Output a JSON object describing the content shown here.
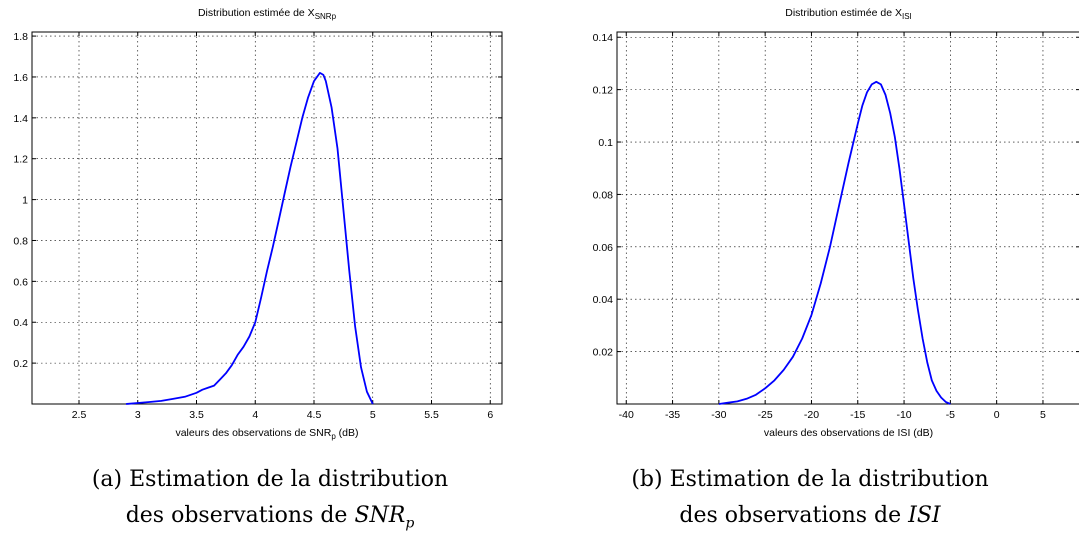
{
  "chart_data": [
    {
      "type": "line",
      "title": {
        "main": "Distribution estimée de X",
        "sub": "SNRp"
      },
      "xlabel": {
        "main": "valeurs des observations de SNR",
        "sub": "p",
        "suffix": " (dB)"
      },
      "ylabel": "",
      "xlim": [
        2.1,
        6.1
      ],
      "ylim": [
        0,
        1.82
      ],
      "xticks": [
        2.5,
        3,
        3.5,
        4,
        4.5,
        5,
        5.5,
        6
      ],
      "xtick_labels": [
        "2.5",
        "3",
        "3.5",
        "4",
        "4.5",
        "5",
        "5.5",
        "6"
      ],
      "yticks": [
        0.2,
        0.4,
        0.6,
        0.8,
        1,
        1.2,
        1.4,
        1.6,
        1.8
      ],
      "ytick_labels": [
        "0.2",
        "0.4",
        "0.6",
        "0.8",
        "1",
        "1.2",
        "1.4",
        "1.6",
        "1.8"
      ],
      "grid": true,
      "line_color": "#0000ff",
      "x": [
        2.9,
        3.0,
        3.1,
        3.2,
        3.3,
        3.4,
        3.5,
        3.55,
        3.6,
        3.65,
        3.7,
        3.75,
        3.8,
        3.85,
        3.9,
        3.95,
        4.0,
        4.05,
        4.1,
        4.15,
        4.2,
        4.25,
        4.3,
        4.35,
        4.4,
        4.45,
        4.5,
        4.55,
        4.58,
        4.6,
        4.65,
        4.7,
        4.75,
        4.8,
        4.85,
        4.9,
        4.95,
        5.0
      ],
      "y": [
        0.0,
        0.005,
        0.01,
        0.015,
        0.025,
        0.035,
        0.055,
        0.07,
        0.08,
        0.09,
        0.12,
        0.15,
        0.19,
        0.24,
        0.28,
        0.33,
        0.4,
        0.52,
        0.65,
        0.77,
        0.9,
        1.03,
        1.16,
        1.28,
        1.4,
        1.5,
        1.58,
        1.62,
        1.61,
        1.58,
        1.45,
        1.25,
        0.95,
        0.65,
        0.38,
        0.18,
        0.06,
        0.0
      ]
    },
    {
      "type": "line",
      "title": {
        "main": "Distribution estimée de X",
        "sub": "ISI"
      },
      "xlabel": {
        "main": "valeurs des observations de ISI",
        "sub": "",
        "suffix": " (dB)"
      },
      "ylabel": "",
      "xlim": [
        -41,
        9
      ],
      "ylim": [
        0,
        0.142
      ],
      "xticks": [
        -40,
        -35,
        -30,
        -25,
        -20,
        -15,
        -10,
        -5,
        0,
        5
      ],
      "xtick_labels": [
        "-40",
        "-35",
        "-30",
        "-25",
        "-20",
        "-15",
        "-10",
        "-5",
        "0",
        "5"
      ],
      "yticks": [
        0.02,
        0.04,
        0.06,
        0.08,
        0.1,
        0.12,
        0.14
      ],
      "ytick_labels": [
        "0.02",
        "0.04",
        "0.06",
        "0.08",
        "0.1",
        "0.12",
        "0.14"
      ],
      "grid": true,
      "line_color": "#0000ff",
      "x": [
        -30,
        -29,
        -28,
        -27,
        -26,
        -25,
        -24,
        -23,
        -22,
        -21,
        -20,
        -19,
        -18,
        -17,
        -16,
        -15,
        -14.5,
        -14,
        -13.5,
        -13,
        -12.5,
        -12,
        -11.5,
        -11,
        -10.5,
        -10,
        -9.5,
        -9,
        -8.5,
        -8,
        -7.5,
        -7,
        -6.5,
        -6,
        -5.5,
        -5
      ],
      "y": [
        0.0,
        0.0005,
        0.001,
        0.002,
        0.0035,
        0.006,
        0.009,
        0.013,
        0.018,
        0.025,
        0.034,
        0.046,
        0.06,
        0.076,
        0.092,
        0.107,
        0.114,
        0.119,
        0.122,
        0.123,
        0.122,
        0.118,
        0.111,
        0.102,
        0.09,
        0.076,
        0.062,
        0.048,
        0.036,
        0.025,
        0.016,
        0.009,
        0.005,
        0.0025,
        0.0008,
        0.0
      ]
    }
  ],
  "captions": [
    {
      "line1": "(a) Estimation de la distribution",
      "line2": "des observations de ",
      "math": "SNR",
      "math_sub": "p"
    },
    {
      "line1": "(b) Estimation de la distribution",
      "line2": "des observations de ",
      "math": "ISI",
      "math_sub": ""
    }
  ]
}
